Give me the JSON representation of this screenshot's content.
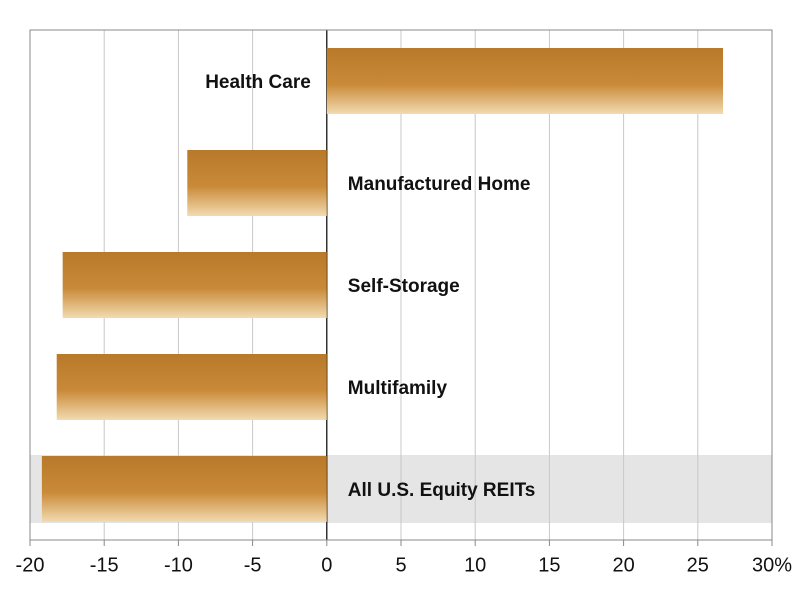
{
  "chart_data": {
    "type": "hbar",
    "categories": [
      "Health Care",
      "Manufactured Home",
      "Self-Storage",
      "Multifamily",
      "All U.S. Equity REITs"
    ],
    "values": [
      26.7,
      -9.4,
      -17.8,
      -18.2,
      -19.2
    ],
    "color": "#c0832e",
    "highlight_index": 4,
    "xlim": [
      -20,
      30
    ],
    "xticks": [
      -20,
      -15,
      -10,
      -5,
      0,
      5,
      10,
      15,
      20,
      25,
      {
        "value": 30,
        "label": "30%"
      }
    ],
    "grid": true
  }
}
